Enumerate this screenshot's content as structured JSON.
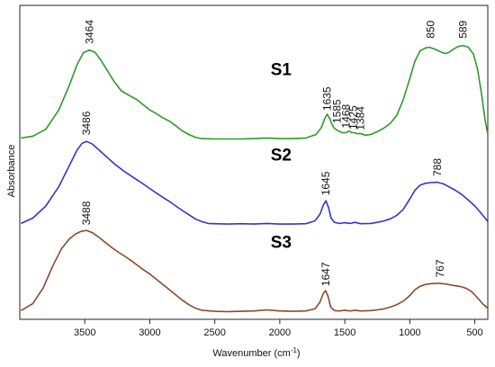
{
  "chart_data": {
    "type": "line",
    "xlabel": "Wavenumber (cm",
    "xlabel_sup": "-1",
    "xlabel_end": ")",
    "ylabel": "Absorbance",
    "xlim": [
      4000,
      400
    ],
    "x_reversed": true,
    "x_ticks": [
      3500,
      3000,
      2500,
      2000,
      1500,
      1000,
      500
    ],
    "y_ticks_shown": false,
    "grid": false,
    "series": [
      {
        "name": "S1",
        "color": "#2e9a2a",
        "base": 0.59,
        "points": [
          [
            3990,
            0.59
          ],
          [
            3900,
            0.595
          ],
          [
            3800,
            0.615
          ],
          [
            3700,
            0.67
          ],
          [
            3620,
            0.74
          ],
          [
            3560,
            0.8
          ],
          [
            3510,
            0.835
          ],
          [
            3464,
            0.842
          ],
          [
            3420,
            0.835
          ],
          [
            3380,
            0.815
          ],
          [
            3330,
            0.785
          ],
          [
            3280,
            0.755
          ],
          [
            3220,
            0.725
          ],
          [
            3150,
            0.71
          ],
          [
            3100,
            0.7
          ],
          [
            3050,
            0.685
          ],
          [
            3000,
            0.67
          ],
          [
            2960,
            0.662
          ],
          [
            2900,
            0.648
          ],
          [
            2850,
            0.638
          ],
          [
            2800,
            0.625
          ],
          [
            2750,
            0.61
          ],
          [
            2700,
            0.6
          ],
          [
            2650,
            0.592
          ],
          [
            2600,
            0.588
          ],
          [
            2500,
            0.587
          ],
          [
            2400,
            0.587
          ],
          [
            2300,
            0.587
          ],
          [
            2200,
            0.588
          ],
          [
            2100,
            0.59
          ],
          [
            2000,
            0.588
          ],
          [
            1900,
            0.588
          ],
          [
            1800,
            0.59
          ],
          [
            1720,
            0.6
          ],
          [
            1680,
            0.62
          ],
          [
            1655,
            0.645
          ],
          [
            1635,
            0.658
          ],
          [
            1615,
            0.645
          ],
          [
            1600,
            0.63
          ],
          [
            1585,
            0.62
          ],
          [
            1560,
            0.612
          ],
          [
            1520,
            0.605
          ],
          [
            1490,
            0.605
          ],
          [
            1468,
            0.61
          ],
          [
            1445,
            0.605
          ],
          [
            1425,
            0.605
          ],
          [
            1400,
            0.602
          ],
          [
            1384,
            0.603
          ],
          [
            1340,
            0.598
          ],
          [
            1300,
            0.6
          ],
          [
            1250,
            0.608
          ],
          [
            1200,
            0.618
          ],
          [
            1150,
            0.632
          ],
          [
            1100,
            0.655
          ],
          [
            1050,
            0.7
          ],
          [
            1000,
            0.76
          ],
          [
            960,
            0.81
          ],
          [
            920,
            0.84
          ],
          [
            880,
            0.848
          ],
          [
            850,
            0.85
          ],
          [
            810,
            0.845
          ],
          [
            770,
            0.838
          ],
          [
            730,
            0.832
          ],
          [
            700,
            0.835
          ],
          [
            670,
            0.843
          ],
          [
            630,
            0.852
          ],
          [
            589,
            0.855
          ],
          [
            550,
            0.85
          ],
          [
            510,
            0.83
          ],
          [
            480,
            0.79
          ],
          [
            450,
            0.72
          ],
          [
            420,
            0.64
          ],
          [
            400,
            0.6
          ]
        ]
      },
      {
        "name": "S2",
        "color": "#3434d0",
        "base": 0.34,
        "points": [
          [
            3990,
            0.345
          ],
          [
            3900,
            0.36
          ],
          [
            3800,
            0.395
          ],
          [
            3700,
            0.45
          ],
          [
            3620,
            0.51
          ],
          [
            3560,
            0.555
          ],
          [
            3520,
            0.575
          ],
          [
            3486,
            0.58
          ],
          [
            3440,
            0.572
          ],
          [
            3390,
            0.555
          ],
          [
            3330,
            0.535
          ],
          [
            3270,
            0.515
          ],
          [
            3200,
            0.495
          ],
          [
            3120,
            0.475
          ],
          [
            3050,
            0.458
          ],
          [
            3000,
            0.445
          ],
          [
            2950,
            0.432
          ],
          [
            2900,
            0.42
          ],
          [
            2850,
            0.408
          ],
          [
            2800,
            0.395
          ],
          [
            2750,
            0.382
          ],
          [
            2700,
            0.37
          ],
          [
            2650,
            0.358
          ],
          [
            2600,
            0.35
          ],
          [
            2550,
            0.345
          ],
          [
            2500,
            0.344
          ],
          [
            2400,
            0.343
          ],
          [
            2300,
            0.344
          ],
          [
            2200,
            0.343
          ],
          [
            2100,
            0.345
          ],
          [
            2000,
            0.343
          ],
          [
            1900,
            0.343
          ],
          [
            1800,
            0.344
          ],
          [
            1730,
            0.352
          ],
          [
            1690,
            0.372
          ],
          [
            1665,
            0.398
          ],
          [
            1645,
            0.41
          ],
          [
            1625,
            0.39
          ],
          [
            1605,
            0.36
          ],
          [
            1580,
            0.348
          ],
          [
            1540,
            0.345
          ],
          [
            1500,
            0.347
          ],
          [
            1460,
            0.345
          ],
          [
            1420,
            0.348
          ],
          [
            1380,
            0.344
          ],
          [
            1300,
            0.345
          ],
          [
            1250,
            0.348
          ],
          [
            1200,
            0.352
          ],
          [
            1150,
            0.358
          ],
          [
            1100,
            0.368
          ],
          [
            1050,
            0.385
          ],
          [
            1000,
            0.415
          ],
          [
            960,
            0.44
          ],
          [
            920,
            0.455
          ],
          [
            880,
            0.46
          ],
          [
            840,
            0.462
          ],
          [
            788,
            0.463
          ],
          [
            740,
            0.458
          ],
          [
            700,
            0.45
          ],
          [
            650,
            0.44
          ],
          [
            600,
            0.428
          ],
          [
            550,
            0.412
          ],
          [
            500,
            0.395
          ],
          [
            460,
            0.378
          ],
          [
            420,
            0.36
          ],
          [
            400,
            0.35
          ]
        ]
      },
      {
        "name": "S3",
        "color": "#8b4a2a",
        "base": 0.09,
        "points": [
          [
            3990,
            0.095
          ],
          [
            3900,
            0.115
          ],
          [
            3820,
            0.16
          ],
          [
            3750,
            0.22
          ],
          [
            3680,
            0.272
          ],
          [
            3620,
            0.3
          ],
          [
            3570,
            0.315
          ],
          [
            3530,
            0.322
          ],
          [
            3488,
            0.325
          ],
          [
            3440,
            0.318
          ],
          [
            3390,
            0.305
          ],
          [
            3340,
            0.29
          ],
          [
            3290,
            0.275
          ],
          [
            3240,
            0.262
          ],
          [
            3180,
            0.248
          ],
          [
            3120,
            0.232
          ],
          [
            3060,
            0.215
          ],
          [
            3000,
            0.2
          ],
          [
            2950,
            0.185
          ],
          [
            2900,
            0.17
          ],
          [
            2850,
            0.155
          ],
          [
            2800,
            0.14
          ],
          [
            2750,
            0.125
          ],
          [
            2700,
            0.112
          ],
          [
            2650,
            0.102
          ],
          [
            2600,
            0.096
          ],
          [
            2500,
            0.093
          ],
          [
            2400,
            0.092
          ],
          [
            2300,
            0.093
          ],
          [
            2200,
            0.094
          ],
          [
            2100,
            0.097
          ],
          [
            2000,
            0.094
          ],
          [
            1900,
            0.093
          ],
          [
            1800,
            0.094
          ],
          [
            1730,
            0.1
          ],
          [
            1690,
            0.12
          ],
          [
            1665,
            0.145
          ],
          [
            1647,
            0.152
          ],
          [
            1628,
            0.135
          ],
          [
            1608,
            0.105
          ],
          [
            1580,
            0.095
          ],
          [
            1540,
            0.094
          ],
          [
            1500,
            0.096
          ],
          [
            1460,
            0.094
          ],
          [
            1420,
            0.096
          ],
          [
            1380,
            0.094
          ],
          [
            1300,
            0.095
          ],
          [
            1250,
            0.097
          ],
          [
            1200,
            0.1
          ],
          [
            1150,
            0.105
          ],
          [
            1100,
            0.112
          ],
          [
            1050,
            0.122
          ],
          [
            1000,
            0.138
          ],
          [
            960,
            0.155
          ],
          [
            920,
            0.165
          ],
          [
            880,
            0.17
          ],
          [
            840,
            0.172
          ],
          [
            800,
            0.173
          ],
          [
            767,
            0.173
          ],
          [
            720,
            0.171
          ],
          [
            680,
            0.168
          ],
          [
            640,
            0.166
          ],
          [
            600,
            0.163
          ],
          [
            560,
            0.158
          ],
          [
            520,
            0.148
          ],
          [
            480,
            0.132
          ],
          [
            440,
            0.115
          ],
          [
            400,
            0.102
          ]
        ]
      }
    ],
    "series_labels": [
      {
        "text": "S1",
        "x": 1990,
        "y": 0.77
      },
      {
        "text": "S2",
        "x": 1990,
        "y": 0.525
      },
      {
        "text": "S3",
        "x": 1990,
        "y": 0.275
      }
    ],
    "annotations": [
      {
        "text": "3464",
        "x": 3464,
        "y": 0.86
      },
      {
        "text": "850",
        "x": 840,
        "y": 0.875
      },
      {
        "text": "589",
        "x": 589,
        "y": 0.875
      },
      {
        "text": "1635",
        "x": 1635,
        "y": 0.668
      },
      {
        "text": "1585",
        "x": 1560,
        "y": 0.632
      },
      {
        "text": "1468",
        "x": 1490,
        "y": 0.618
      },
      {
        "text": "1425",
        "x": 1435,
        "y": 0.614
      },
      {
        "text": "1384",
        "x": 1380,
        "y": 0.612
      },
      {
        "text": "3486",
        "x": 3486,
        "y": 0.598
      },
      {
        "text": "1645",
        "x": 1645,
        "y": 0.425
      },
      {
        "text": "788",
        "x": 788,
        "y": 0.48
      },
      {
        "text": "3488",
        "x": 3488,
        "y": 0.34
      },
      {
        "text": "1647",
        "x": 1647,
        "y": 0.165
      },
      {
        "text": "767",
        "x": 767,
        "y": 0.19
      }
    ],
    "ylim": [
      0.07,
      0.97
    ]
  }
}
